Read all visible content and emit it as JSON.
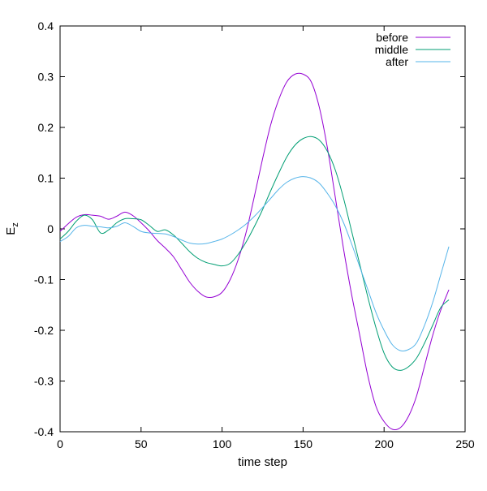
{
  "chart_data": {
    "type": "line",
    "title": "",
    "xlabel": "time step",
    "ylabel_main": "E",
    "ylabel_sub": "z",
    "xlim": [
      0,
      250
    ],
    "ylim": [
      -0.4,
      0.4
    ],
    "xticks": [
      0,
      50,
      100,
      150,
      200,
      250
    ],
    "yticks": [
      -0.4,
      -0.3,
      -0.2,
      -0.1,
      0,
      0.1,
      0.2,
      0.3,
      0.4
    ],
    "xtick_labels": [
      "0",
      "50",
      "100",
      "150",
      "200",
      "250"
    ],
    "ytick_labels": [
      "-0.4",
      "-0.3",
      "-0.2",
      "-0.1",
      "0",
      "0.1",
      "0.2",
      "0.3",
      "0.4"
    ],
    "grid": false,
    "legend_position": "top-right",
    "series": [
      {
        "name": "before",
        "color": "#9400d3",
        "x": [
          0,
          5,
          10,
          15,
          20,
          25,
          30,
          35,
          40,
          45,
          50,
          55,
          60,
          65,
          70,
          75,
          80,
          85,
          90,
          95,
          100,
          105,
          110,
          115,
          120,
          125,
          130,
          135,
          140,
          145,
          150,
          155,
          160,
          165,
          170,
          175,
          180,
          185,
          190,
          195,
          200,
          205,
          210,
          215,
          220,
          225,
          230,
          235,
          240
        ],
        "y": [
          -0.005,
          0.01,
          0.023,
          0.028,
          0.027,
          0.025,
          0.019,
          0.025,
          0.033,
          0.026,
          0.012,
          -0.004,
          -0.023,
          -0.038,
          -0.055,
          -0.08,
          -0.105,
          -0.123,
          -0.134,
          -0.134,
          -0.125,
          -0.1,
          -0.06,
          -0.005,
          0.065,
          0.138,
          0.205,
          0.255,
          0.29,
          0.305,
          0.305,
          0.29,
          0.24,
          0.16,
          0.06,
          -0.04,
          -0.13,
          -0.21,
          -0.29,
          -0.35,
          -0.38,
          -0.395,
          -0.392,
          -0.37,
          -0.33,
          -0.27,
          -0.21,
          -0.16,
          -0.12
        ]
      },
      {
        "name": "middle",
        "color": "#009e73",
        "x": [
          0,
          5,
          10,
          15,
          20,
          25,
          30,
          35,
          40,
          45,
          50,
          55,
          60,
          65,
          70,
          75,
          80,
          85,
          90,
          95,
          100,
          105,
          110,
          115,
          120,
          125,
          130,
          135,
          140,
          145,
          150,
          155,
          160,
          165,
          170,
          175,
          180,
          185,
          190,
          195,
          200,
          205,
          210,
          215,
          220,
          225,
          230,
          235,
          240
        ],
        "y": [
          -0.02,
          -0.005,
          0.015,
          0.027,
          0.018,
          -0.008,
          -0.002,
          0.012,
          0.02,
          0.02,
          0.018,
          0.007,
          -0.005,
          -0.002,
          -0.012,
          -0.028,
          -0.045,
          -0.058,
          -0.066,
          -0.07,
          -0.073,
          -0.068,
          -0.05,
          -0.025,
          0.005,
          0.038,
          0.075,
          0.11,
          0.142,
          0.165,
          0.178,
          0.182,
          0.175,
          0.153,
          0.115,
          0.06,
          -0.005,
          -0.07,
          -0.135,
          -0.195,
          -0.245,
          -0.272,
          -0.279,
          -0.272,
          -0.255,
          -0.225,
          -0.19,
          -0.155,
          -0.14
        ]
      },
      {
        "name": "after",
        "color": "#56b4e9",
        "x": [
          0,
          5,
          10,
          15,
          20,
          25,
          30,
          35,
          40,
          45,
          50,
          55,
          60,
          65,
          70,
          75,
          80,
          85,
          90,
          95,
          100,
          105,
          110,
          115,
          120,
          125,
          130,
          135,
          140,
          145,
          150,
          155,
          160,
          165,
          170,
          175,
          180,
          185,
          190,
          195,
          200,
          205,
          210,
          215,
          220,
          225,
          230,
          235,
          240
        ],
        "y": [
          -0.025,
          -0.015,
          0.002,
          0.007,
          0.005,
          0.004,
          0.002,
          0.005,
          0.012,
          0.005,
          -0.005,
          -0.008,
          -0.009,
          -0.01,
          -0.015,
          -0.022,
          -0.028,
          -0.03,
          -0.029,
          -0.025,
          -0.02,
          -0.012,
          -0.002,
          0.01,
          0.025,
          0.042,
          0.06,
          0.078,
          0.092,
          0.1,
          0.103,
          0.1,
          0.09,
          0.07,
          0.045,
          0.012,
          -0.03,
          -0.075,
          -0.12,
          -0.165,
          -0.2,
          -0.228,
          -0.24,
          -0.238,
          -0.225,
          -0.19,
          -0.145,
          -0.09,
          -0.035
        ]
      }
    ]
  }
}
